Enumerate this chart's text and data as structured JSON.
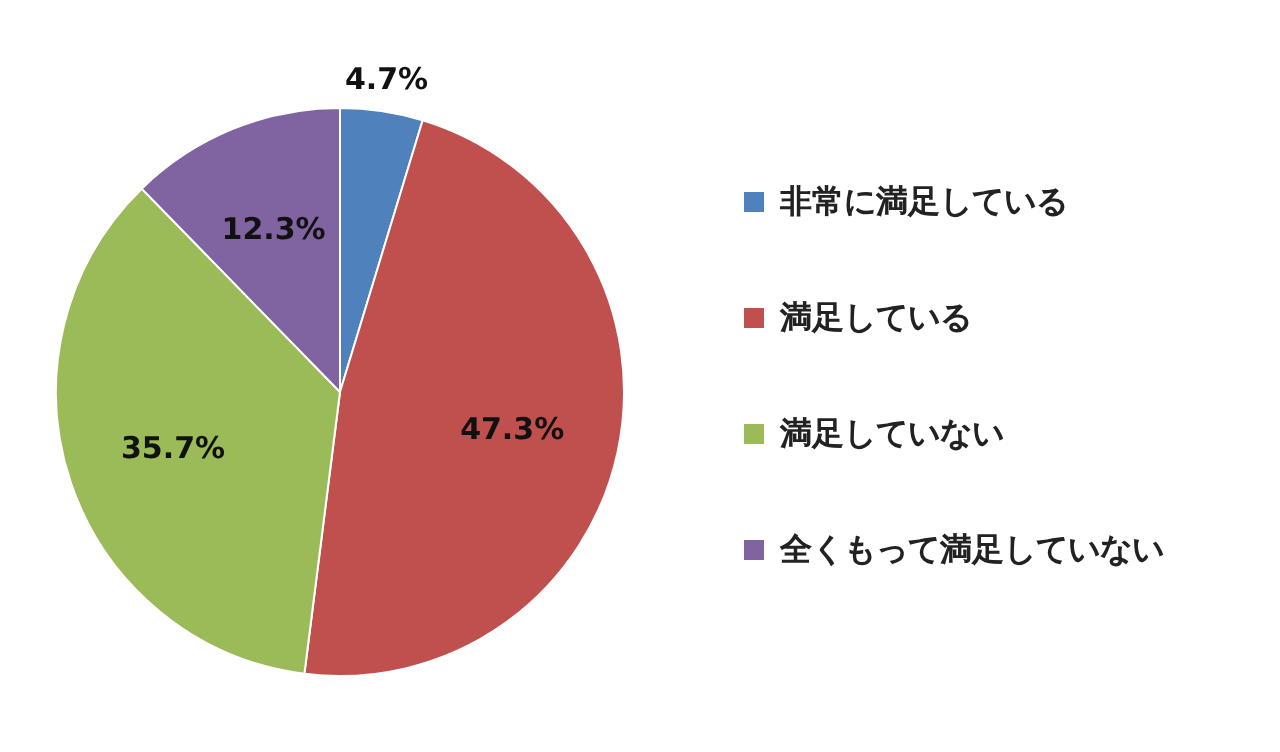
{
  "chart_data": {
    "type": "pie",
    "categories": [
      "非常に満足している",
      "満足している",
      "満足していない",
      "全くもって満足していない"
    ],
    "values": [
      4.7,
      47.3,
      35.7,
      12.3
    ],
    "value_labels": [
      "4.7%",
      "47.3%",
      "35.7%",
      "12.3%"
    ],
    "colors": [
      "#4f81bd",
      "#c0504d",
      "#9bbb59",
      "#8064a2"
    ],
    "legend": "right"
  }
}
